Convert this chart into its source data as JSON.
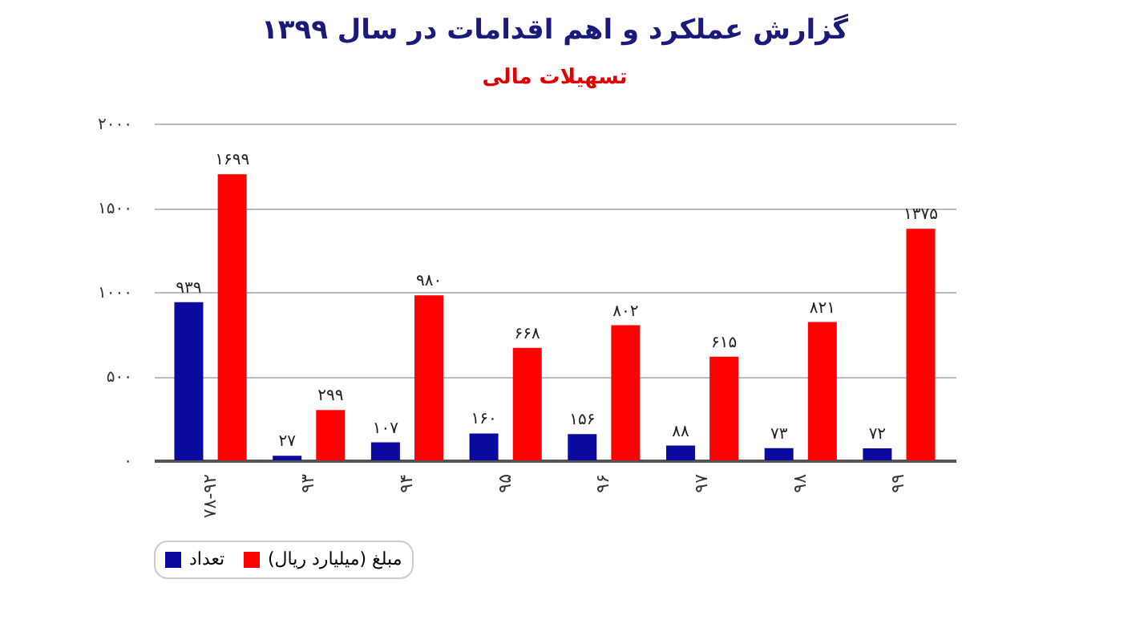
{
  "chart_data": {
    "type": "bar",
    "title": "گزارش عملکرد و اهم اقدامات در سال ۱۳۹۹",
    "subtitle": "تسهیلات مالی",
    "categories": [
      "۷۸-۹۲",
      "۹۳",
      "۹۴",
      "۹۵",
      "۹۶",
      "۹۷",
      "۹۸",
      "۹۹"
    ],
    "series": [
      {
        "name": "تعداد",
        "color": "#0a0a9e",
        "values": [
          939,
          27,
          107,
          160,
          156,
          88,
          73,
          72
        ],
        "value_labels": [
          "۹۳۹",
          "۲۷",
          "۱۰۷",
          "۱۶۰",
          "۱۵۶",
          "۸۸",
          "۷۳",
          "۷۲"
        ]
      },
      {
        "name": "مبلغ (میلیارد ریال)",
        "color": "#ff0000",
        "values": [
          1699,
          299,
          980,
          668,
          802,
          615,
          821,
          1375
        ],
        "value_labels": [
          "۱۶۹۹",
          "۲۹۹",
          "۹۸۰",
          "۶۶۸",
          "۸۰۲",
          "۶۱۵",
          "۸۲۱",
          "۱۳۷۵"
        ]
      }
    ],
    "ylim": [
      0,
      2000
    ],
    "yticks": [
      {
        "value": 0,
        "label": "۰"
      },
      {
        "value": 500,
        "label": "۵۰۰"
      },
      {
        "value": 1000,
        "label": "۱۰۰۰"
      },
      {
        "value": 1500,
        "label": "۱۵۰۰"
      },
      {
        "value": 2000,
        "label": "۲۰۰۰"
      }
    ],
    "grid": "y",
    "legend": "bottom"
  }
}
